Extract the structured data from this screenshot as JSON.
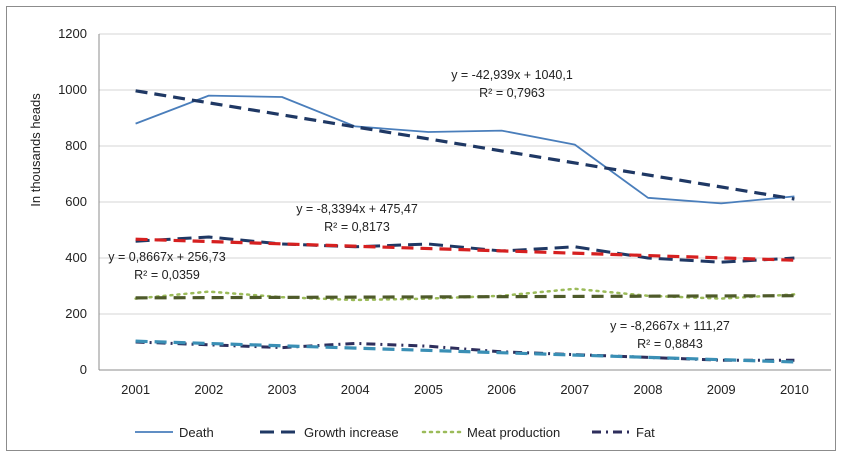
{
  "chart_data": {
    "type": "line",
    "title": "",
    "xlabel": "",
    "ylabel": "In thousands heads",
    "categories": [
      "2001",
      "2002",
      "2003",
      "2004",
      "2005",
      "2006",
      "2007",
      "2008",
      "2009",
      "2010"
    ],
    "y_ticks": [
      "0",
      "200",
      "400",
      "600",
      "800",
      "1000",
      "1200"
    ],
    "ylim": [
      0,
      1200
    ],
    "grid": "horizontal",
    "legend_position": "bottom",
    "series": [
      {
        "name": "Death",
        "style": "solid",
        "color": "#4a7ebb",
        "values": [
          880,
          980,
          975,
          870,
          850,
          855,
          805,
          615,
          595,
          620
        ]
      },
      {
        "name": "Growth increase",
        "style": "long-dash",
        "color": "#1f3864",
        "values": [
          460,
          475,
          450,
          440,
          450,
          425,
          440,
          400,
          385,
          400
        ]
      },
      {
        "name": "Meat production",
        "style": "dotted",
        "color": "#9bbb59",
        "values": [
          255,
          280,
          260,
          250,
          255,
          265,
          290,
          265,
          255,
          270
        ]
      },
      {
        "name": "Fat",
        "style": "dash-dot",
        "color": "#2e2e5c",
        "values": [
          100,
          90,
          80,
          95,
          85,
          65,
          55,
          45,
          35,
          35
        ]
      }
    ],
    "trendlines": [
      {
        "series": "Death",
        "color": "#1f3864",
        "slope": -42.939,
        "intercept": 1040.1,
        "equation": "y = -42,939x + 1040,1",
        "r2": "R² = 0,7963"
      },
      {
        "series": "Growth increase",
        "color": "#d62020",
        "slope": -8.3394,
        "intercept": 475.47,
        "equation": "y = -8,3394x + 475,47",
        "r2": "R² = 0,8173"
      },
      {
        "series": "Meat production",
        "color": "#4e5a2a",
        "slope": 0.8667,
        "intercept": 256.73,
        "equation": "y = 0,8667x + 256,73",
        "r2": "R² = 0,0359"
      },
      {
        "series": "Fat",
        "color": "#3a8fb5",
        "slope": -8.2667,
        "intercept": 111.27,
        "equation": "y = -8,2667x + 111,27",
        "r2": "R² = 0,8843"
      }
    ]
  }
}
